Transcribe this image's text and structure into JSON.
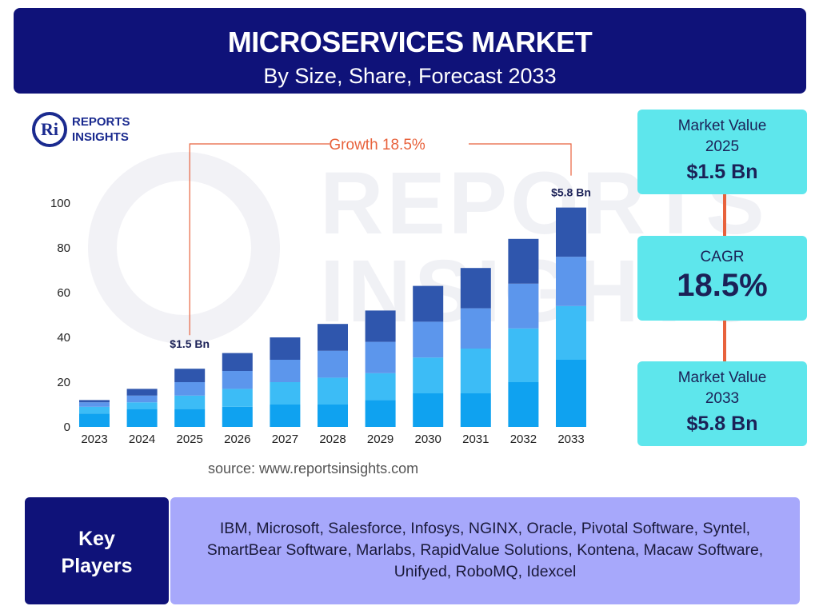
{
  "header": {
    "title": "MICROSERVICES MARKET",
    "subtitle": "By Size, Share, Forecast 2033"
  },
  "brand": {
    "logo_mark": "Ri",
    "line1": "REPORTS",
    "line2": "INSIGHTS"
  },
  "colors": {
    "navy": "#0f1279",
    "cyan": "#5ee6ec",
    "lavender": "#a7a8fb",
    "accent": "#e8623c",
    "seg1": "#0fa2f0",
    "seg2": "#3cbcf6",
    "seg3": "#5c96ec",
    "seg4": "#2f56ad"
  },
  "chart_data": {
    "type": "bar",
    "stacked": true,
    "categories": [
      "2023",
      "2024",
      "2025",
      "2026",
      "2027",
      "2028",
      "2029",
      "2030",
      "2031",
      "2032",
      "2033"
    ],
    "series": [
      {
        "name": "segment-1",
        "values": [
          6,
          8,
          8,
          9,
          10,
          10,
          12,
          15,
          15,
          20,
          30
        ]
      },
      {
        "name": "segment-2",
        "values": [
          3,
          3,
          6,
          8,
          10,
          12,
          12,
          16,
          20,
          24,
          24
        ]
      },
      {
        "name": "segment-3",
        "values": [
          2,
          3,
          6,
          8,
          10,
          12,
          14,
          16,
          18,
          20,
          22
        ]
      },
      {
        "name": "segment-4",
        "values": [
          1,
          3,
          6,
          8,
          10,
          12,
          14,
          16,
          18,
          20,
          22
        ]
      }
    ],
    "yticks": [
      0,
      20,
      40,
      60,
      80,
      100
    ],
    "ylim": [
      0,
      100
    ],
    "annotations": {
      "growth_label": "Growth  18.5%",
      "start_label": "$1.5 Bn",
      "end_label": "$5.8 Bn",
      "start_year": "2025",
      "end_year": "2033"
    },
    "title": "",
    "xlabel": "",
    "ylabel": ""
  },
  "source": "source: www.reportsinsights.com",
  "stats": {
    "value_2025": {
      "label_line1": "Market Value",
      "label_line2": "2025",
      "value": "$1.5 Bn"
    },
    "cagr": {
      "label": "CAGR",
      "value": "18.5%"
    },
    "value_2033": {
      "label_line1": "Market Value",
      "label_line2": "2033",
      "value": "$5.8 Bn"
    }
  },
  "players": {
    "label_line1": "Key",
    "label_line2": "Players",
    "line1": "IBM, Microsoft, Salesforce, Infosys, NGINX, Oracle, Pivotal Software, Syntel,",
    "line2": "SmartBear Software, Marlabs, RapidValue Solutions, Kontena, Macaw Software,",
    "line3": "Unifyed, RoboMQ, Idexcel"
  }
}
